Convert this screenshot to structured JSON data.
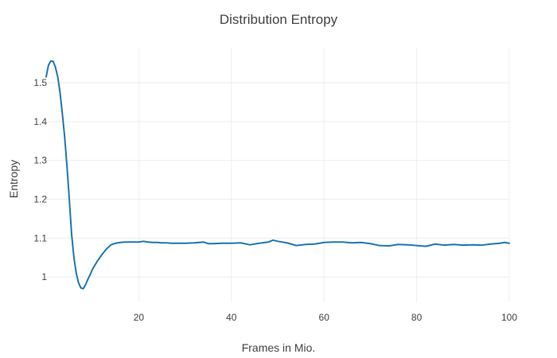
{
  "chart_data": {
    "type": "line",
    "title": "Distribution Entropy",
    "xlabel": "Frames in Mio.",
    "ylabel": "Entropy",
    "xlim": [
      0,
      100
    ],
    "ylim": [
      0.935,
      1.59
    ],
    "xticks": [
      20,
      40,
      60,
      80,
      100
    ],
    "yticks": [
      1,
      1.1,
      1.2,
      1.3,
      1.4,
      1.5
    ],
    "ytick_labels": [
      "1",
      "1.1",
      "1.2",
      "1.3",
      "1.4",
      "1.5"
    ],
    "grid": true,
    "legend": "none",
    "series": [
      {
        "color": "#1f77b4",
        "x": [
          0,
          0.5,
          1,
          1.5,
          2,
          2.5,
          3,
          3.5,
          4,
          4.5,
          5,
          5.5,
          6,
          6.5,
          7,
          7.5,
          8,
          8.5,
          9,
          9.5,
          10,
          11,
          12,
          13,
          14,
          15,
          16,
          17,
          18,
          19,
          20,
          21,
          22,
          23,
          24,
          25,
          26,
          27,
          28,
          29,
          30,
          32,
          34,
          35,
          36,
          38,
          40,
          42,
          44,
          46,
          48,
          49,
          50,
          52,
          54,
          56,
          58,
          60,
          62,
          64,
          66,
          68,
          70,
          72,
          74,
          76,
          78,
          80,
          82,
          84,
          86,
          88,
          90,
          92,
          94,
          96,
          98,
          99,
          100
        ],
        "y": [
          1.515,
          1.545,
          1.556,
          1.555,
          1.54,
          1.515,
          1.475,
          1.42,
          1.36,
          1.285,
          1.2,
          1.11,
          1.05,
          1.01,
          0.985,
          0.972,
          0.97,
          0.98,
          0.994,
          1.006,
          1.02,
          1.04,
          1.057,
          1.072,
          1.083,
          1.087,
          1.089,
          1.09,
          1.09,
          1.09,
          1.09,
          1.092,
          1.09,
          1.089,
          1.089,
          1.088,
          1.088,
          1.087,
          1.087,
          1.087,
          1.087,
          1.088,
          1.09,
          1.086,
          1.086,
          1.087,
          1.087,
          1.088,
          1.083,
          1.087,
          1.09,
          1.095,
          1.092,
          1.088,
          1.081,
          1.084,
          1.085,
          1.089,
          1.09,
          1.09,
          1.088,
          1.089,
          1.086,
          1.081,
          1.08,
          1.084,
          1.083,
          1.081,
          1.079,
          1.085,
          1.082,
          1.084,
          1.082,
          1.083,
          1.082,
          1.085,
          1.087,
          1.089,
          1.087
        ]
      }
    ]
  }
}
